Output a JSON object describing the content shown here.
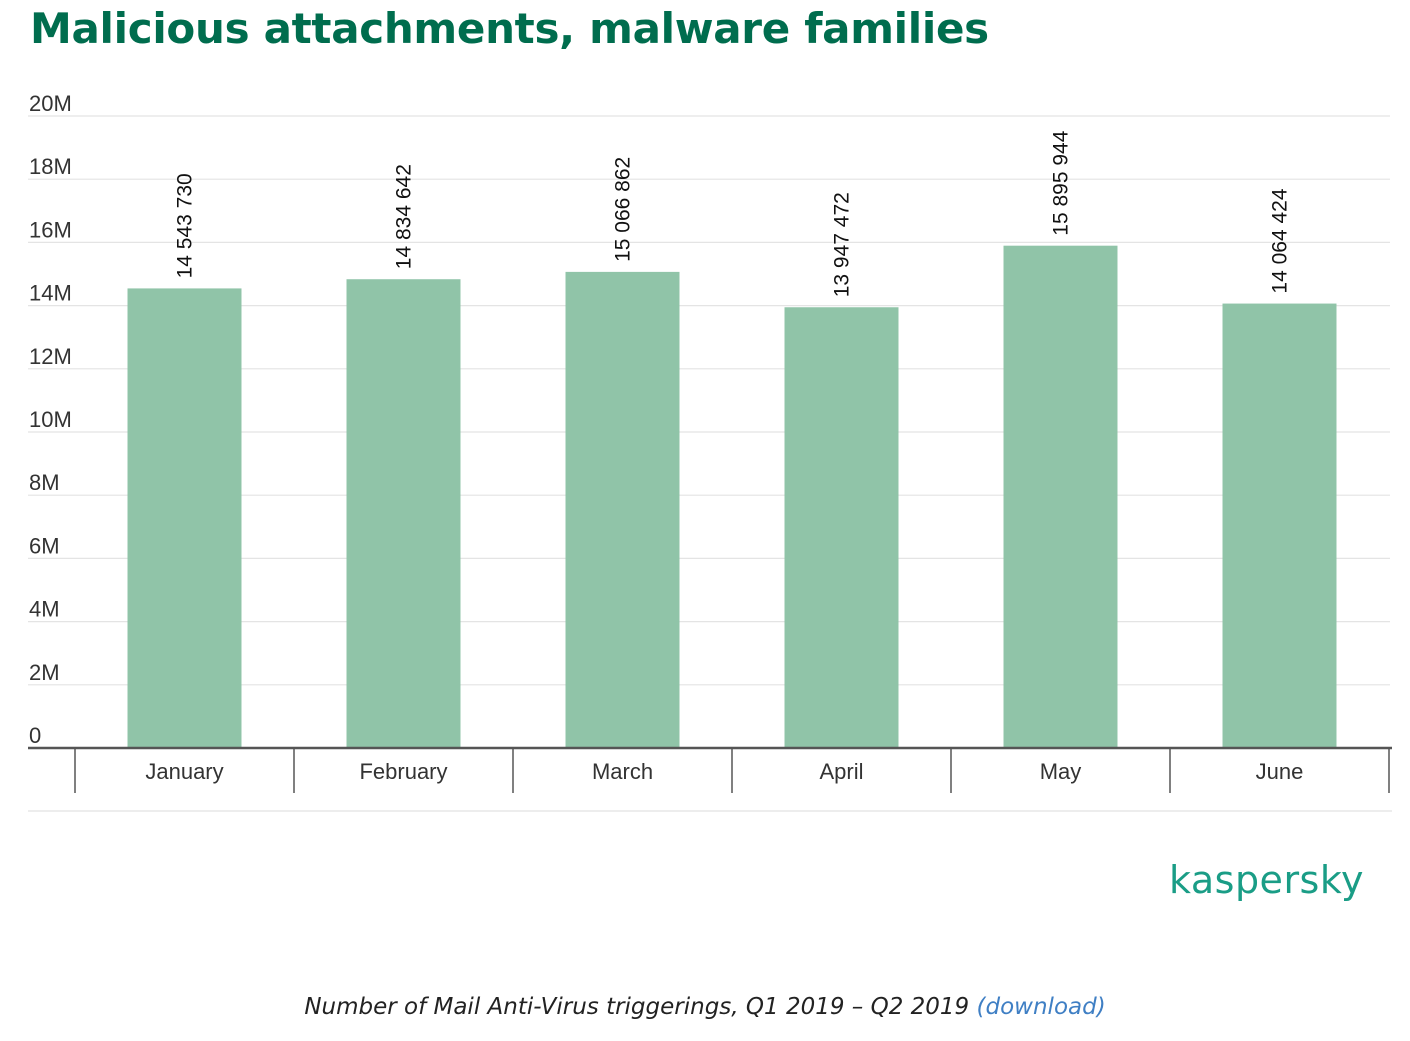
{
  "title": "Malicious attachments, malware families",
  "caption": {
    "text": "Number of Mail Anti-Virus triggerings, Q1 2019 – Q2 2019",
    "link_text": "(download)"
  },
  "brand": "kaspersky",
  "colors": {
    "title": "#006d4e",
    "bar": "#90c4a8",
    "brand": "#1a9d86",
    "link": "#3f7fc4"
  },
  "chart_data": {
    "type": "bar",
    "categories": [
      "January",
      "February",
      "March",
      "April",
      "May",
      "June"
    ],
    "values": [
      14543730,
      14834642,
      15066862,
      13947472,
      15895944,
      14064424
    ],
    "value_labels": [
      "14 543 730",
      "14 834 642",
      "15 066 862",
      "13 947 472",
      "15 895 944",
      "14 064 424"
    ],
    "ylim": [
      0,
      20000000
    ],
    "yticks": [
      0,
      2000000,
      4000000,
      6000000,
      8000000,
      10000000,
      12000000,
      14000000,
      16000000,
      18000000,
      20000000
    ],
    "ytick_labels": [
      "0",
      "2M",
      "4M",
      "6M",
      "8M",
      "10M",
      "12M",
      "14M",
      "16M",
      "18M",
      "20M"
    ],
    "grid": true,
    "title": "Malicious attachments, malware families",
    "xlabel": "",
    "ylabel": ""
  }
}
